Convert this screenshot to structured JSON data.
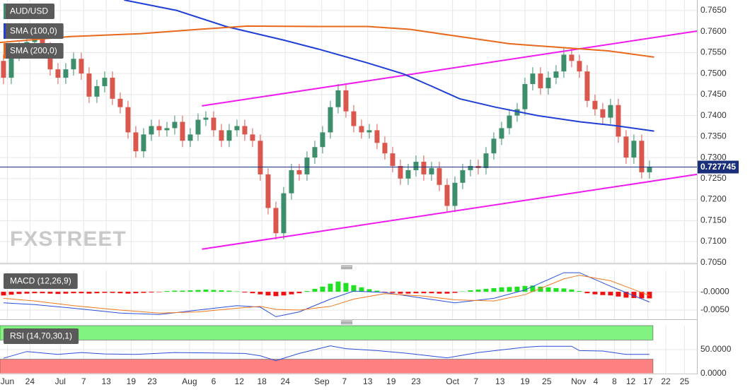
{
  "chart_data": [
    {
      "type": "candlestick",
      "title": "AUD/USD",
      "watermark": "FXSTREET",
      "x": [
        0,
        1,
        2,
        3,
        4,
        5,
        6,
        7,
        8,
        9,
        10,
        11,
        12,
        13,
        14,
        15,
        16,
        17,
        18,
        19,
        20,
        21,
        22,
        23,
        24,
        25,
        26,
        27,
        28,
        29,
        30,
        31,
        32,
        33,
        34,
        35,
        36,
        37,
        38,
        39,
        40,
        41,
        42,
        43,
        44,
        45,
        46,
        47,
        48,
        49,
        50,
        51,
        52,
        53,
        54,
        55,
        56,
        57,
        58,
        59,
        60,
        61,
        62,
        63,
        64,
        65,
        66,
        67,
        68,
        69,
        70,
        71,
        72,
        73,
        74,
        75,
        76,
        77,
        78,
        79,
        80,
        81,
        82,
        83
      ],
      "open": [
        0.753,
        0.749,
        0.7545,
        0.756,
        0.7575,
        0.759,
        0.756,
        0.751,
        0.749,
        0.751,
        0.7535,
        0.75,
        0.7445,
        0.747,
        0.749,
        0.744,
        0.742,
        0.736,
        0.7315,
        0.7355,
        0.7375,
        0.7365,
        0.737,
        0.7385,
        0.734,
        0.7355,
        0.739,
        0.7395,
        0.7365,
        0.734,
        0.7365,
        0.7375,
        0.7355,
        0.734,
        0.726,
        0.718,
        0.712,
        0.7215,
        0.727,
        0.726,
        0.73,
        0.7325,
        0.736,
        0.742,
        0.746,
        0.741,
        0.7375,
        0.736,
        0.7365,
        0.7335,
        0.731,
        0.728,
        0.725,
        0.727,
        0.729,
        0.726,
        0.7275,
        0.7235,
        0.7185,
        0.724,
        0.727,
        0.728,
        0.7275,
        0.731,
        0.7345,
        0.737,
        0.74,
        0.7415,
        0.7475,
        0.75,
        0.7465,
        0.749,
        0.7505,
        0.7545,
        0.753,
        0.7505,
        0.7435,
        0.7415,
        0.7395,
        0.7425,
        0.735,
        0.73,
        0.734,
        0.7265
      ],
      "high": [
        0.7545,
        0.756,
        0.7575,
        0.759,
        0.7605,
        0.7605,
        0.7575,
        0.7525,
        0.7525,
        0.755,
        0.755,
        0.7515,
        0.7485,
        0.7505,
        0.7505,
        0.7455,
        0.7435,
        0.7375,
        0.737,
        0.739,
        0.739,
        0.7385,
        0.74,
        0.74,
        0.737,
        0.7405,
        0.741,
        0.741,
        0.738,
        0.738,
        0.739,
        0.739,
        0.737,
        0.7355,
        0.7275,
        0.7195,
        0.723,
        0.7285,
        0.7285,
        0.7315,
        0.734,
        0.7375,
        0.7435,
        0.7475,
        0.7475,
        0.7425,
        0.739,
        0.738,
        0.738,
        0.735,
        0.7325,
        0.7295,
        0.7285,
        0.7305,
        0.7305,
        0.729,
        0.729,
        0.725,
        0.7255,
        0.7285,
        0.7295,
        0.7295,
        0.7325,
        0.736,
        0.7385,
        0.7415,
        0.743,
        0.749,
        0.7515,
        0.7515,
        0.7505,
        0.752,
        0.756,
        0.756,
        0.7545,
        0.752,
        0.745,
        0.743,
        0.744,
        0.744,
        0.7365,
        0.7355,
        0.7355,
        0.7293
      ],
      "low": [
        0.7475,
        0.7475,
        0.753,
        0.7545,
        0.756,
        0.7545,
        0.7495,
        0.7475,
        0.7475,
        0.7495,
        0.7485,
        0.743,
        0.743,
        0.7455,
        0.7425,
        0.7405,
        0.7345,
        0.73,
        0.73,
        0.734,
        0.735,
        0.735,
        0.7355,
        0.7325,
        0.7325,
        0.734,
        0.7375,
        0.735,
        0.7325,
        0.7325,
        0.735,
        0.734,
        0.7325,
        0.7245,
        0.7165,
        0.7105,
        0.7105,
        0.72,
        0.7245,
        0.7245,
        0.7285,
        0.731,
        0.7345,
        0.7405,
        0.7395,
        0.736,
        0.7345,
        0.7345,
        0.732,
        0.7295,
        0.7265,
        0.7235,
        0.7235,
        0.7255,
        0.7245,
        0.7245,
        0.722,
        0.717,
        0.717,
        0.7225,
        0.7255,
        0.726,
        0.726,
        0.7295,
        0.733,
        0.7355,
        0.7385,
        0.74,
        0.746,
        0.745,
        0.745,
        0.7475,
        0.749,
        0.7515,
        0.749,
        0.742,
        0.74,
        0.738,
        0.738,
        0.7335,
        0.7285,
        0.7285,
        0.725,
        0.725
      ],
      "close": [
        0.749,
        0.7545,
        0.756,
        0.7575,
        0.759,
        0.756,
        0.751,
        0.749,
        0.751,
        0.7535,
        0.75,
        0.7445,
        0.747,
        0.749,
        0.744,
        0.742,
        0.736,
        0.7315,
        0.7355,
        0.7375,
        0.7365,
        0.737,
        0.7385,
        0.734,
        0.7355,
        0.739,
        0.7395,
        0.7365,
        0.734,
        0.7365,
        0.7375,
        0.7355,
        0.734,
        0.726,
        0.718,
        0.712,
        0.7215,
        0.727,
        0.726,
        0.73,
        0.7325,
        0.736,
        0.742,
        0.746,
        0.741,
        0.7375,
        0.736,
        0.7365,
        0.7335,
        0.731,
        0.728,
        0.725,
        0.727,
        0.729,
        0.726,
        0.7275,
        0.7235,
        0.7185,
        0.724,
        0.727,
        0.728,
        0.7275,
        0.731,
        0.7345,
        0.737,
        0.74,
        0.7415,
        0.7475,
        0.75,
        0.7465,
        0.749,
        0.7505,
        0.7545,
        0.753,
        0.7505,
        0.7435,
        0.7415,
        0.7395,
        0.7425,
        0.735,
        0.73,
        0.734,
        0.7265,
        0.7278
      ],
      "up_color": "#3d8f6b",
      "down_color": "#d9574d",
      "overlays": [
        {
          "name": "SMA (100,0)",
          "color": "#1f3fd6",
          "x": [
            15.5,
            22.3,
            28.6,
            35.9,
            40.5,
            46.8,
            51.4,
            55.0,
            58.6,
            63.2,
            68.6,
            74.1,
            78.6,
            83.6
          ],
          "values": [
            0.7675,
            0.765,
            0.7612,
            0.758,
            0.7558,
            0.7525,
            0.7499,
            0.747,
            0.744,
            0.742,
            0.74,
            0.7385,
            0.7376,
            0.7363
          ]
        },
        {
          "name": "SMA (200,0)",
          "color": "#e8681c",
          "x": [
            -0.45,
            8.6,
            17.7,
            25.0,
            31.4,
            40.5,
            46.8,
            52.3,
            58.6,
            65.0,
            72.3,
            77.7,
            83.6
          ],
          "values": [
            0.7574,
            0.7588,
            0.7595,
            0.7605,
            0.7613,
            0.7612,
            0.7612,
            0.7605,
            0.7588,
            0.7571,
            0.7561,
            0.7554,
            0.7539
          ]
        }
      ],
      "trendlines": [
        {
          "color": "#f01af0",
          "x": [
            25.5,
            89.1
          ],
          "values": [
            0.7423,
            0.7601
          ]
        },
        {
          "color": "#f01af0",
          "x": [
            25.5,
            89.1
          ],
          "values": [
            0.7082,
            0.726
          ]
        }
      ],
      "last_price": 0.727745,
      "last_price_color": "#1a2f7a",
      "xlim": [
        -0.45,
        89.1
      ],
      "xticks": [
        {
          "value": 0.5,
          "label": "Jun"
        },
        {
          "value": 3.4,
          "label": "24"
        },
        {
          "value": 7.3,
          "label": "Jul"
        },
        {
          "value": 10.3,
          "label": "7"
        },
        {
          "value": 13.2,
          "label": "13"
        },
        {
          "value": 16.4,
          "label": "19"
        },
        {
          "value": 19.1,
          "label": "23"
        },
        {
          "value": 23.9,
          "label": "Aug"
        },
        {
          "value": 27.0,
          "label": "6"
        },
        {
          "value": 30.3,
          "label": "12"
        },
        {
          "value": 33.2,
          "label": "18"
        },
        {
          "value": 36.2,
          "label": "24"
        },
        {
          "value": 40.9,
          "label": "Sep"
        },
        {
          "value": 43.8,
          "label": "7"
        },
        {
          "value": 46.8,
          "label": "13"
        },
        {
          "value": 49.8,
          "label": "19"
        },
        {
          "value": 53.0,
          "label": "23"
        },
        {
          "value": 57.7,
          "label": "Oct"
        },
        {
          "value": 60.7,
          "label": "7"
        },
        {
          "value": 63.8,
          "label": "13"
        },
        {
          "value": 67.0,
          "label": "19"
        },
        {
          "value": 69.8,
          "label": "25"
        },
        {
          "value": 73.9,
          "label": "Nov"
        },
        {
          "value": 76.1,
          "label": "4"
        },
        {
          "value": 78.5,
          "label": "8"
        },
        {
          "value": 80.6,
          "label": "12"
        },
        {
          "value": 82.8,
          "label": "17"
        },
        {
          "value": 85.1,
          "label": "22"
        },
        {
          "value": 87.5,
          "label": "25"
        }
      ],
      "ylim": [
        0.7048,
        0.7675
      ],
      "yticks": [
        {
          "value": 0.765,
          "label": "0.7650"
        },
        {
          "value": 0.76,
          "label": "0.7600"
        },
        {
          "value": 0.755,
          "label": "0.7550"
        },
        {
          "value": 0.75,
          "label": "0.7500"
        },
        {
          "value": 0.745,
          "label": "0.7450"
        },
        {
          "value": 0.74,
          "label": "0.7400"
        },
        {
          "value": 0.735,
          "label": "0.7350"
        },
        {
          "value": 0.73,
          "label": "0.7300"
        },
        {
          "value": 0.725,
          "label": "0.7250"
        },
        {
          "value": 0.72,
          "label": "0.7200"
        },
        {
          "value": 0.715,
          "label": "0.7150"
        },
        {
          "value": 0.71,
          "label": "0.7100"
        },
        {
          "value": 0.705,
          "label": "0.7050"
        }
      ],
      "grid": true
    },
    {
      "type": "macd",
      "title": "MACD (12,26,9)",
      "histogram": {
        "up_color": "#22e022",
        "down_color": "#ee1111",
        "values": [
          -0.001,
          -0.0008,
          -0.0006,
          -0.0005,
          -0.0004,
          -0.0004,
          -0.0005,
          -0.0006,
          -0.0005,
          -0.0004,
          -0.0004,
          -0.0005,
          -0.0004,
          -0.0003,
          -0.0003,
          -0.0004,
          -0.0005,
          -0.0004,
          -0.0003,
          -0.0002,
          -0.0001,
          0.0002,
          0.0003,
          0.0003,
          0.0004,
          0.0005,
          0.0006,
          0.0005,
          0.0004,
          0.0003,
          0.0001,
          -0.0002,
          -0.0004,
          -0.0007,
          -0.001,
          -0.0012,
          -0.001,
          -0.0007,
          -0.0004,
          0.0002,
          0.0008,
          0.0014,
          0.0022,
          0.0028,
          0.0024,
          0.0018,
          0.0012,
          0.0007,
          0.0003,
          -0.0001,
          -0.0003,
          -0.0005,
          -0.0005,
          -0.0004,
          -0.0004,
          -0.0004,
          -0.0005,
          -0.0005,
          -0.0003,
          0.0001,
          0.0004,
          0.0006,
          0.0008,
          0.001,
          0.0012,
          0.0013,
          0.0014,
          0.0016,
          0.0017,
          0.0014,
          0.0012,
          0.001,
          0.0009,
          0.0006,
          0.0002,
          -0.0004,
          -0.0007,
          -0.0009,
          -0.001,
          -0.0013,
          -0.0016,
          -0.0017,
          -0.0018,
          -0.0018
        ]
      },
      "lines": [
        {
          "color": "#2a4fd8",
          "x": [
            0,
            4,
            9,
            15,
            20,
            25,
            30,
            33,
            35,
            38,
            42,
            45,
            49,
            54,
            58,
            63,
            67,
            72,
            74,
            78,
            83
          ],
          "values": [
            -0.003,
            -0.0035,
            -0.0045,
            -0.0058,
            -0.0062,
            -0.005,
            -0.0038,
            -0.0042,
            -0.0068,
            -0.0055,
            -0.002,
            0.0002,
            -0.0002,
            -0.0018,
            -0.003,
            -0.0018,
            0.0005,
            0.0052,
            0.0052,
            0.0015,
            -0.0028
          ]
        },
        {
          "color": "#f07a20",
          "x": [
            0,
            4,
            9,
            15,
            20,
            25,
            30,
            33,
            35,
            38,
            42,
            45,
            49,
            54,
            58,
            63,
            67,
            72,
            74,
            78,
            83
          ],
          "values": [
            -0.0018,
            -0.0025,
            -0.0038,
            -0.005,
            -0.0058,
            -0.0055,
            -0.0045,
            -0.004,
            -0.0048,
            -0.005,
            -0.004,
            -0.002,
            -0.0005,
            -0.0012,
            -0.0022,
            -0.0025,
            -0.0008,
            0.0035,
            0.0045,
            0.003,
            -0.001
          ]
        }
      ],
      "ylim": [
        -0.0075,
        0.0058
      ],
      "yticks": [
        {
          "value": 0,
          "label": "-0.0000"
        },
        {
          "value": -0.005,
          "label": "-0.0050"
        }
      ],
      "grid": true
    },
    {
      "type": "line",
      "title": "RSI (14,70,30,1)",
      "bands": [
        {
          "from": 70,
          "to": 100,
          "color": "#7ff27f"
        },
        {
          "from": 0,
          "to": 30,
          "color": "#ff8080"
        }
      ],
      "color": "#2a4fd8",
      "x": [
        0,
        3,
        7,
        10,
        13,
        17,
        22,
        27,
        31,
        33,
        35,
        38,
        42,
        44,
        48,
        52,
        57,
        61,
        67,
        69,
        73,
        74,
        77,
        80,
        83
      ],
      "values": [
        32,
        46,
        40,
        44,
        41,
        40,
        44,
        43,
        42,
        37,
        27,
        42,
        58,
        52,
        48,
        42,
        33,
        44,
        55,
        57,
        57,
        48,
        47,
        40,
        40
      ],
      "ylim": [
        0,
        100
      ],
      "yticks": [
        {
          "value": 50,
          "label": "50.0000"
        },
        {
          "value": 0,
          "label": "0.0000"
        }
      ],
      "grid": true
    }
  ]
}
